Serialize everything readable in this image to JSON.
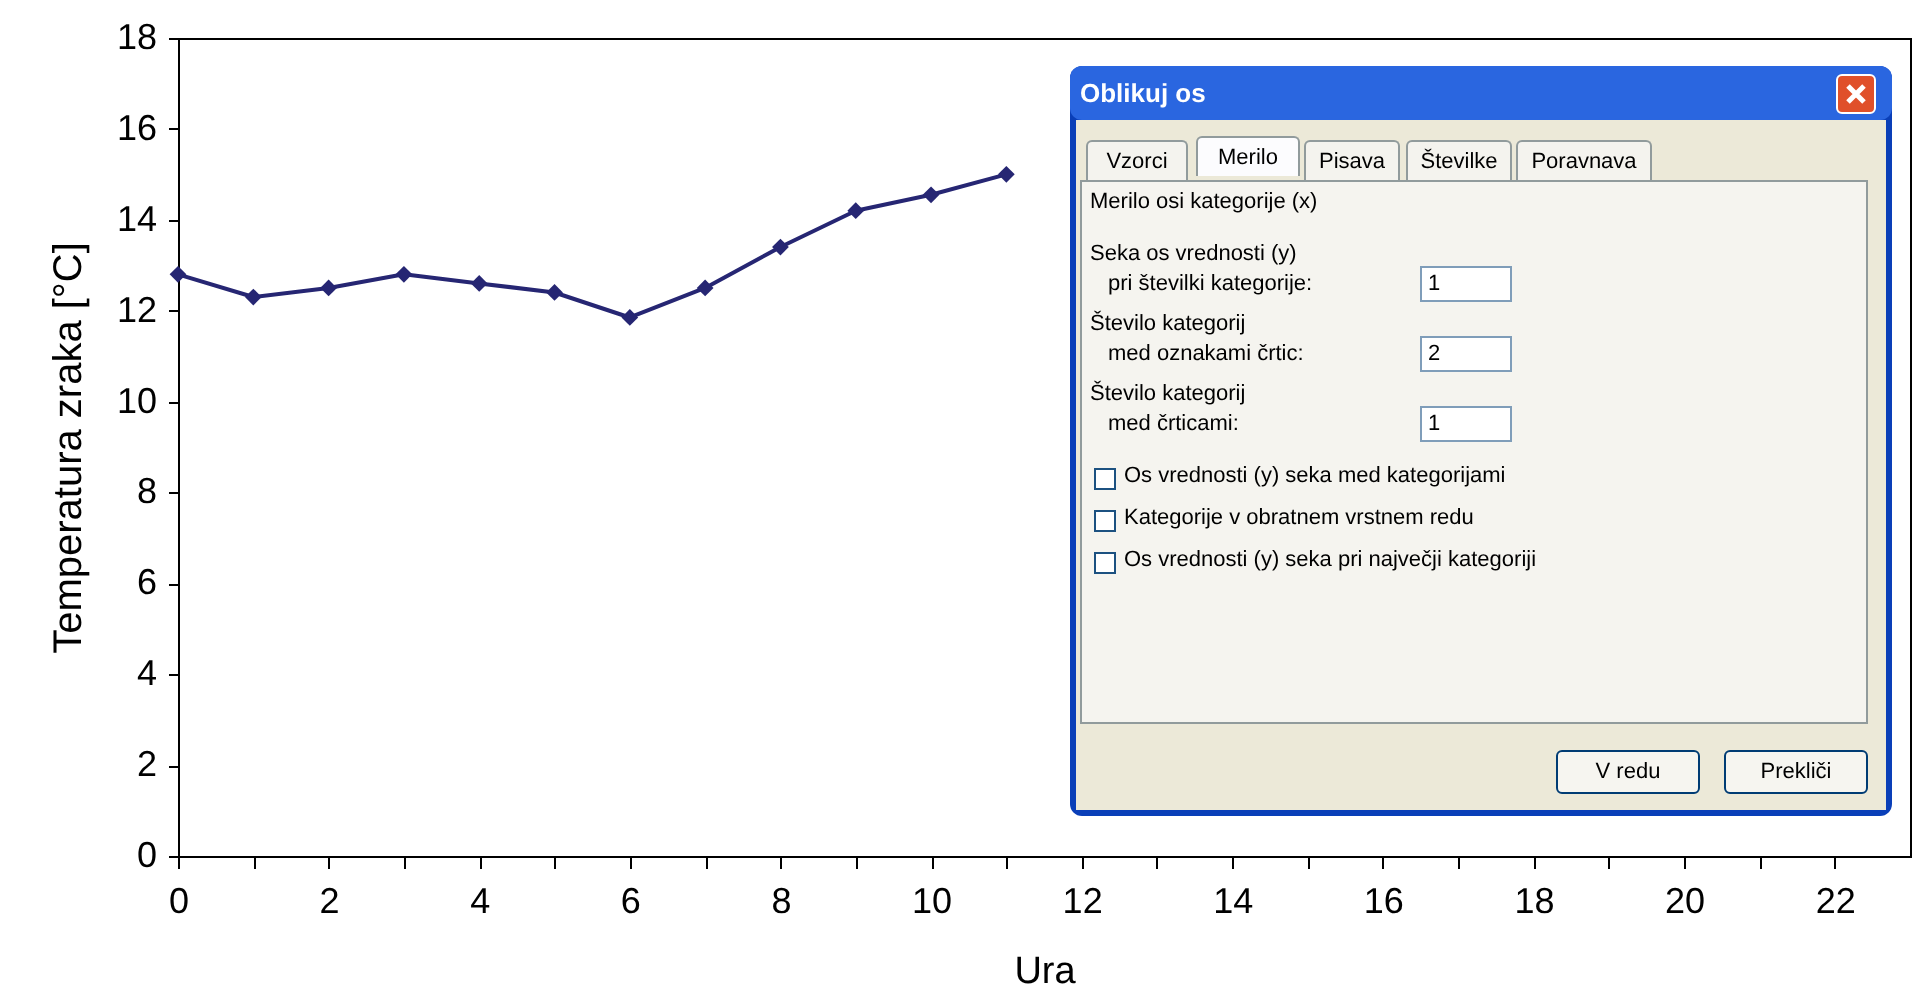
{
  "chart_data": {
    "type": "line",
    "xlabel": "Ura",
    "ylabel": "Temperatura zraka [°C]",
    "x": [
      0,
      1,
      2,
      3,
      4,
      5,
      6,
      7,
      8,
      9,
      10,
      11
    ],
    "series": [
      {
        "color": "#262673",
        "values": [
          12.8,
          12.3,
          12.5,
          12.8,
          12.6,
          12.4,
          11.85,
          12.5,
          13.4,
          14.2,
          14.55,
          15.0
        ]
      }
    ],
    "xlim": [
      0,
      23
    ],
    "xticks": [
      0,
      {
        "value": 1,
        "label": null
      },
      2,
      {
        "value": 3,
        "label": null
      },
      4,
      {
        "value": 5,
        "label": null
      },
      6,
      {
        "value": 7,
        "label": null
      },
      8,
      {
        "value": 9,
        "label": null
      },
      10,
      {
        "value": 11,
        "label": null
      },
      12,
      {
        "value": 13,
        "label": null
      },
      14,
      {
        "value": 15,
        "label": null
      },
      16,
      {
        "value": 17,
        "label": null
      },
      18,
      {
        "value": 19,
        "label": null
      },
      20,
      {
        "value": 21,
        "label": null
      },
      22
    ],
    "ylim": [
      0,
      18
    ],
    "yticks": [
      0,
      2,
      4,
      6,
      8,
      10,
      12,
      14,
      16,
      18
    ],
    "marker": "diamond",
    "line_style": "solid",
    "grid": false,
    "annotations": [
      "Oblikuj os",
      "Vzorci",
      "Merilo",
      "Pisava",
      "Številke",
      "Poravnava",
      "Merilo osi kategorije (x)",
      "Seka os vrednosti (y)",
      "pri številki kategorije:",
      "1",
      "Število kategorij",
      "med oznakami črtic:",
      "2",
      "Število kategorij",
      "med črticami:",
      "1",
      "Os vrednosti (y) seka med kategorijami",
      "Kategorije v obratnem vrstnem redu",
      "Os vrednosti (y) seka pri največji kategoriji",
      "V redu",
      "Prekliči"
    ]
  }
}
